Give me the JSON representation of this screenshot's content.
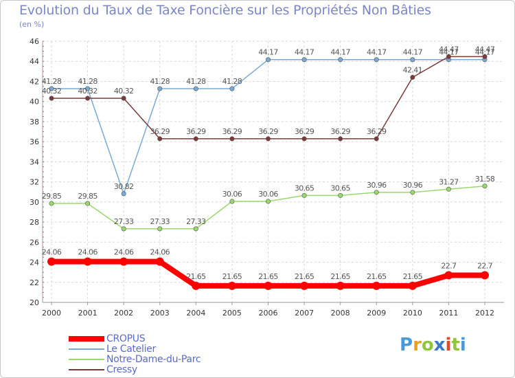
{
  "chart_data": {
    "type": "line",
    "title": "Evolution du Taux de Taxe Foncière sur les Propriétés Non Bâties",
    "subtitle": "(en %)",
    "x": [
      "2000",
      "2001",
      "2002",
      "2003",
      "2004",
      "2005",
      "2006",
      "2007",
      "2008",
      "2009",
      "2010",
      "2011",
      "2012"
    ],
    "ylim": [
      20,
      46
    ],
    "yticks": [
      20,
      22,
      24,
      26,
      28,
      30,
      32,
      34,
      36,
      38,
      40,
      42,
      44,
      46
    ],
    "grid": true,
    "series": [
      {
        "name": "CROPUS",
        "color": "#ff0000",
        "values": [
          24.06,
          24.06,
          24.06,
          24.06,
          21.65,
          21.65,
          21.65,
          21.65,
          21.65,
          21.65,
          21.65,
          22.7,
          22.7
        ],
        "labels": [
          "24.06",
          "24.06",
          "24.06",
          "24.06",
          "21.65",
          "21.65",
          "21.65",
          "21.65",
          "21.65",
          "21.65",
          "21.65",
          "22.7",
          "22.7"
        ]
      },
      {
        "name": "Le Catelier",
        "color": "#7aaad4",
        "values": [
          41.28,
          41.28,
          30.82,
          41.28,
          41.28,
          41.28,
          44.17,
          44.17,
          44.17,
          44.17,
          44.17,
          44.17,
          44.17
        ],
        "labels": [
          "41.28",
          "41.28",
          "30.82",
          "41.28",
          "41.28",
          "41.28",
          "44.17",
          "44.17",
          "44.17",
          "44.17",
          "44.17",
          "44.17",
          "44.17"
        ]
      },
      {
        "name": "Notre-Dame-du-Parc",
        "color": "#99d86d",
        "values": [
          29.85,
          29.85,
          27.33,
          27.33,
          27.33,
          30.06,
          30.06,
          30.65,
          30.65,
          30.96,
          30.96,
          31.27,
          31.58
        ],
        "labels": [
          "29.85",
          "29.85",
          "27.33",
          "27.33",
          "27.33",
          "30.06",
          "30.06",
          "30.65",
          "30.65",
          "30.96",
          "30.96",
          "31.27",
          "31.58"
        ]
      },
      {
        "name": "Cressy",
        "color": "#7a3a3a",
        "values": [
          40.32,
          40.32,
          40.32,
          36.29,
          36.29,
          36.29,
          36.29,
          36.29,
          36.29,
          36.29,
          42.41,
          44.47,
          44.47
        ],
        "labels": [
          "40.32",
          "40.32",
          "40.32",
          "36.29",
          "36.29",
          "36.29",
          "36.29",
          "36.29",
          "36.29",
          "36.29",
          "42.41",
          "44.47",
          "44.47"
        ]
      }
    ]
  },
  "logo": {
    "letters": [
      "P",
      "r",
      "o",
      "x",
      "i",
      "t",
      "i"
    ],
    "colors": [
      "#4a9ad8",
      "#e6a21e",
      "#8fc63e",
      "#3a78c8",
      "#e04a2a",
      "#8fc63e",
      "#4a9ad8"
    ]
  }
}
